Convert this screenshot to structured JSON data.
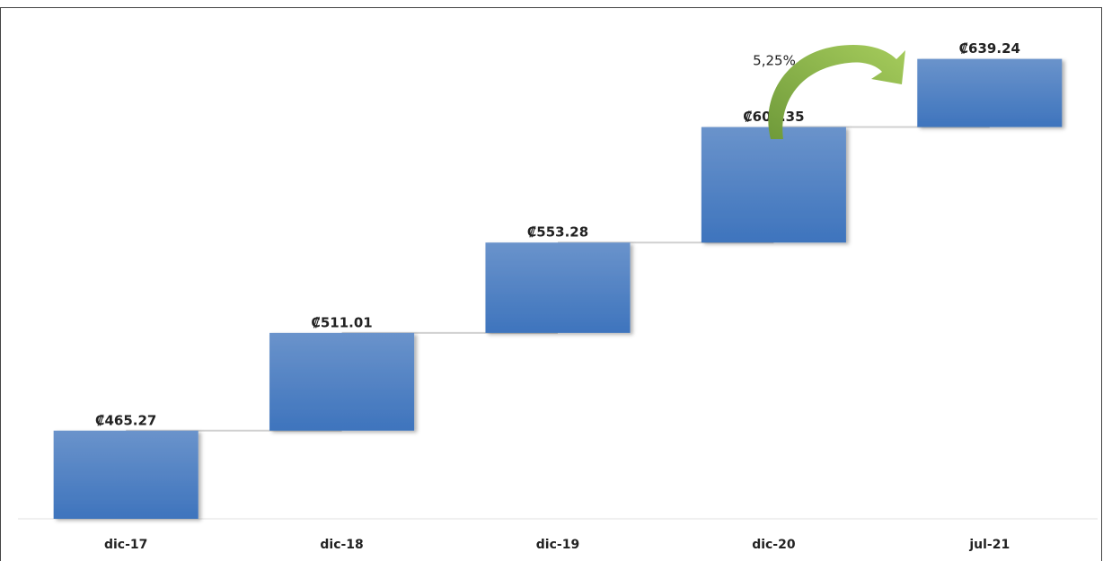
{
  "chart_data": {
    "type": "waterfall",
    "categories": [
      "dic-17",
      "dic-18",
      "dic-19",
      "dic-20",
      "jul-21"
    ],
    "values": [
      465.27,
      511.01,
      553.28,
      607.35,
      639.24
    ],
    "value_labels": [
      "₡465.27",
      "₡511.01",
      "₡553.28",
      "₡607.35",
      "₡639.24"
    ],
    "color": "#4a7fc4",
    "ylim": [
      424,
      650
    ],
    "annotation": "5,25%"
  }
}
